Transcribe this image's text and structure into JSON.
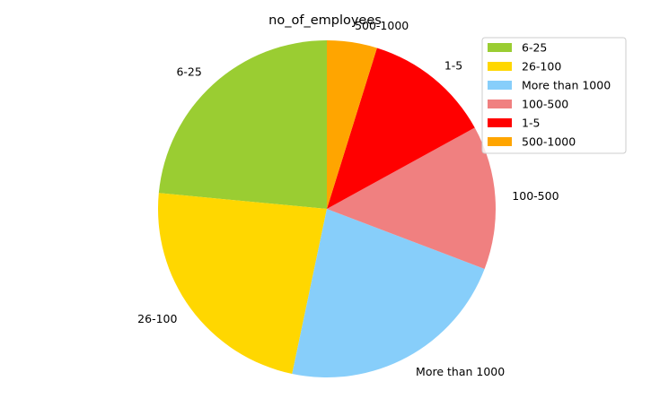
{
  "chart_data": {
    "type": "pie",
    "title": "no_of_employees",
    "start_angle_deg": 90,
    "direction": "counterclockwise",
    "slices": [
      {
        "label": "6-25",
        "value": 23.5,
        "color": "#9ACD32"
      },
      {
        "label": "26-100",
        "value": 23.2,
        "color": "#FFD700"
      },
      {
        "label": "More than 1000",
        "value": 22.5,
        "color": "#87CEFA"
      },
      {
        "label": "100-500",
        "value": 13.8,
        "color": "#F08080"
      },
      {
        "label": "1-5",
        "value": 12.2,
        "color": "#FF0000"
      },
      {
        "label": "500-1000",
        "value": 4.8,
        "color": "#FFA500"
      }
    ],
    "legend": {
      "placement": "top-right",
      "entries": [
        "6-25",
        "26-100",
        "More than 1000",
        "100-500",
        "1-5",
        "500-1000"
      ]
    }
  }
}
